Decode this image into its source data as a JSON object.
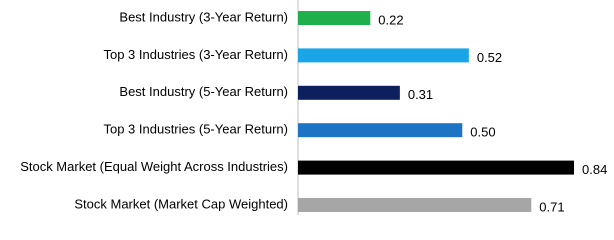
{
  "chart_data": {
    "type": "barh",
    "categories": [
      "Best Industry (3-Year Return)",
      "Top 3 Industries (3-Year Return)",
      "Best Industry (5-Year Return)",
      "Top 3 Industries (5-Year Return)",
      "Stock Market (Equal Weight Across Industries)",
      "Stock Market (Market Cap Weighted)"
    ],
    "values": [
      0.22,
      0.52,
      0.31,
      0.5,
      0.84,
      0.71
    ],
    "value_labels": [
      "0.22",
      "0.52",
      "0.31",
      "0.50",
      "0.84",
      "0.71"
    ],
    "colors": [
      "#1fb04c",
      "#1aa5e6",
      "#0d1f5c",
      "#1e74c4",
      "#000000",
      "#a6a6a6"
    ]
  }
}
